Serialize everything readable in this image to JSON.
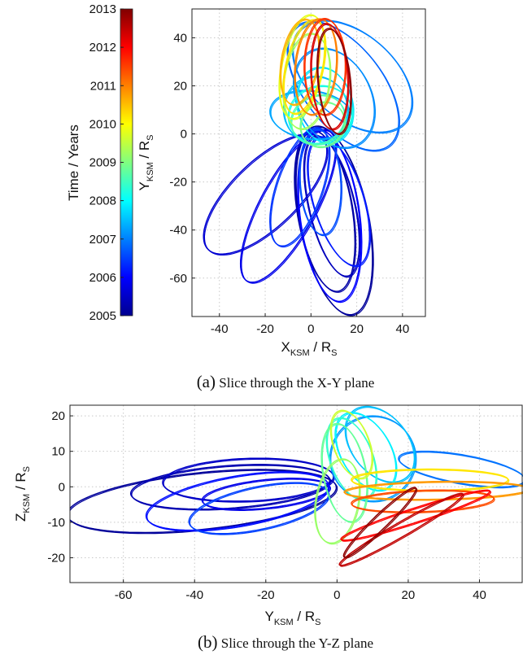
{
  "colors": {
    "scale": [
      "#00008f",
      "#0000ff",
      "#0080ff",
      "#00ffff",
      "#80ff80",
      "#ffff00",
      "#ff8000",
      "#ff0000",
      "#800000"
    ]
  },
  "colorbar": {
    "label": "Time / Years",
    "ticks": [
      "2005",
      "2006",
      "2007",
      "2008",
      "2009",
      "2010",
      "2011",
      "2012",
      "2013"
    ],
    "range": [
      2005,
      2013
    ]
  },
  "chart_data": [
    {
      "type": "line",
      "subplot": "a",
      "caption_letter": "(a)",
      "caption_text": " Slice through the X-Y plane",
      "xlabel_main": "X",
      "xlabel_sub": "KSM",
      "xlabel_rest": " / R",
      "xlabel_rest_sub": "S",
      "ylabel_main": "Y",
      "ylabel_sub": "KSM",
      "ylabel_rest": " / R",
      "ylabel_rest_sub": "S",
      "xlim": [
        -52,
        50
      ],
      "ylim": [
        -76,
        52
      ],
      "xticks": [
        -40,
        -20,
        0,
        20,
        40
      ],
      "yticks": [
        -60,
        -40,
        -20,
        0,
        20,
        40
      ],
      "grid": true,
      "series": [
        {
          "year": 2005.1,
          "cx": 10,
          "cy": -36,
          "rx": 15,
          "ry": 40,
          "rot": 12
        },
        {
          "year": 2005.2,
          "cx": 6,
          "cy": -32,
          "rx": 12,
          "ry": 34,
          "rot": 10
        },
        {
          "year": 2005.4,
          "cx": 9,
          "cy": -30,
          "rx": 10,
          "ry": 30,
          "rot": 14
        },
        {
          "year": 2005.6,
          "cx": -20,
          "cy": -25,
          "rx": 14,
          "ry": 34,
          "rot": -48
        },
        {
          "year": 2005.8,
          "cx": -10,
          "cy": -30,
          "rx": 12,
          "ry": 36,
          "rot": -30
        },
        {
          "year": 2006.0,
          "cx": 8,
          "cy": -34,
          "rx": 13,
          "ry": 36,
          "rot": 8
        },
        {
          "year": 2006.2,
          "cx": 12,
          "cy": -28,
          "rx": 11,
          "ry": 28,
          "rot": 18
        },
        {
          "year": 2006.4,
          "cx": -5,
          "cy": -22,
          "rx": 10,
          "ry": 26,
          "rot": -20
        },
        {
          "year": 2006.6,
          "cx": 4,
          "cy": -20,
          "rx": 9,
          "ry": 22,
          "rot": 4
        },
        {
          "year": 2006.8,
          "cx": 14,
          "cy": 20,
          "rx": 17,
          "ry": 32,
          "rot": 40
        },
        {
          "year": 2007.0,
          "cx": 18,
          "cy": 24,
          "rx": 18,
          "ry": 30,
          "rot": 52
        },
        {
          "year": 2007.1,
          "cx": 10,
          "cy": 15,
          "rx": 16,
          "ry": 22,
          "rot": 30
        },
        {
          "year": 2007.3,
          "cx": 0,
          "cy": 8,
          "rx": 18,
          "ry": 10,
          "rot": -6
        },
        {
          "year": 2007.5,
          "cx": 2,
          "cy": 10,
          "rx": 14,
          "ry": 14,
          "rot": 0
        },
        {
          "year": 2007.8,
          "cx": 6,
          "cy": 12,
          "rx": 12,
          "ry": 16,
          "rot": 15
        },
        {
          "year": 2008.2,
          "cx": 4,
          "cy": 8,
          "rx": 14,
          "ry": 12,
          "rot": 10
        },
        {
          "year": 2008.6,
          "cx": 3,
          "cy": 6,
          "rx": 12,
          "ry": 10,
          "rot": 20
        },
        {
          "year": 2008.9,
          "cx": 5,
          "cy": 4,
          "rx": 10,
          "ry": 9,
          "rot": 35
        },
        {
          "year": 2009.3,
          "cx": -2,
          "cy": 22,
          "rx": 10,
          "ry": 20,
          "rot": -8
        },
        {
          "year": 2009.8,
          "cx": -4,
          "cy": 28,
          "rx": 9,
          "ry": 22,
          "rot": -12
        },
        {
          "year": 2010.2,
          "cx": -3,
          "cy": 28,
          "rx": 8,
          "ry": 20,
          "rot": -14
        },
        {
          "year": 2010.6,
          "cx": -5,
          "cy": 30,
          "rx": 8,
          "ry": 18,
          "rot": -10
        },
        {
          "year": 2011.0,
          "cx": 2,
          "cy": 28,
          "rx": 9,
          "ry": 20,
          "rot": -6
        },
        {
          "year": 2011.6,
          "cx": 6,
          "cy": 28,
          "rx": 9,
          "ry": 20,
          "rot": 0
        },
        {
          "year": 2012.3,
          "cx": 8,
          "cy": 24,
          "rx": 8,
          "ry": 22,
          "rot": 4
        },
        {
          "year": 2012.9,
          "cx": 10,
          "cy": 22,
          "rx": 7,
          "ry": 22,
          "rot": 6
        }
      ]
    },
    {
      "type": "line",
      "subplot": "b",
      "caption_letter": "(b)",
      "caption_text": " Slice through the Y-Z plane",
      "xlabel_main": "Y",
      "xlabel_sub": "KSM",
      "xlabel_rest": " / R",
      "xlabel_rest_sub": "S",
      "ylabel_main": "Z",
      "ylabel_sub": "KSM",
      "ylabel_rest": " / R",
      "ylabel_rest_sub": "S",
      "xlim": [
        -75,
        52
      ],
      "ylim": [
        -27,
        23
      ],
      "xticks": [
        -60,
        -40,
        -20,
        0,
        20,
        40
      ],
      "yticks": [
        -20,
        -10,
        0,
        10,
        20
      ],
      "grid": true,
      "series": [
        {
          "year": 2005.1,
          "cx": -38,
          "cy": -4,
          "rx": 38,
          "ry": 8,
          "rot": 6
        },
        {
          "year": 2005.3,
          "cx": -30,
          "cy": 0,
          "rx": 28,
          "ry": 6,
          "rot": 4
        },
        {
          "year": 2005.5,
          "cx": -25,
          "cy": 2,
          "rx": 24,
          "ry": 6,
          "rot": 2
        },
        {
          "year": 2005.8,
          "cx": -20,
          "cy": -2,
          "rx": 18,
          "ry": 4,
          "rot": 6
        },
        {
          "year": 2006.1,
          "cx": -28,
          "cy": -4,
          "rx": 26,
          "ry": 7,
          "rot": 10
        },
        {
          "year": 2006.5,
          "cx": -22,
          "cy": -6,
          "rx": 20,
          "ry": 6,
          "rot": 12
        },
        {
          "year": 2006.9,
          "cx": 35,
          "cy": 5,
          "rx": 18,
          "ry": 4,
          "rot": -10
        },
        {
          "year": 2007.2,
          "cx": 10,
          "cy": 8,
          "rx": 12,
          "ry": 12,
          "rot": 30
        },
        {
          "year": 2007.5,
          "cx": 12,
          "cy": 12,
          "rx": 8,
          "ry": 12,
          "rot": 38
        },
        {
          "year": 2007.9,
          "cx": 8,
          "cy": 10,
          "rx": 7,
          "ry": 12,
          "rot": 30
        },
        {
          "year": 2008.4,
          "cx": 4,
          "cy": 8,
          "rx": 6,
          "ry": 12,
          "rot": 20
        },
        {
          "year": 2008.8,
          "cx": 2,
          "cy": 4,
          "rx": 6,
          "ry": 14,
          "rot": 10
        },
        {
          "year": 2009.2,
          "cx": 0,
          "cy": -4,
          "rx": 6,
          "ry": 12,
          "rot": -10
        },
        {
          "year": 2009.6,
          "cx": 4,
          "cy": 12,
          "rx": 5,
          "ry": 10,
          "rot": 20
        },
        {
          "year": 2010.2,
          "cx": 26,
          "cy": 2,
          "rx": 22,
          "ry": 3,
          "rot": 0
        },
        {
          "year": 2010.8,
          "cx": 28,
          "cy": -1,
          "rx": 26,
          "ry": 2.5,
          "rot": 1
        },
        {
          "year": 2011.4,
          "cx": 24,
          "cy": -4,
          "rx": 20,
          "ry": 3,
          "rot": 2
        },
        {
          "year": 2012.0,
          "cx": 22,
          "cy": -8,
          "rx": 22,
          "ry": 2,
          "rot": 18
        },
        {
          "year": 2012.5,
          "cx": 18,
          "cy": -12,
          "rx": 20,
          "ry": 2,
          "rot": 30
        },
        {
          "year": 2012.9,
          "cx": 12,
          "cy": -10,
          "rx": 14,
          "ry": 2,
          "rot": 44
        }
      ]
    }
  ]
}
